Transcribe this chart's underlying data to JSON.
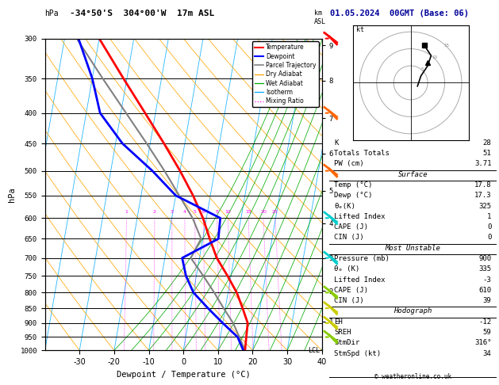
{
  "title_left": "-34°50'S  304°00'W  17m ASL",
  "title_right": "01.05.2024  00GMT (Base: 06)",
  "xlabel": "Dewpoint / Temperature (°C)",
  "pressure_ticks": [
    300,
    350,
    400,
    450,
    500,
    550,
    600,
    650,
    700,
    750,
    800,
    850,
    900,
    950,
    1000
  ],
  "temperature_profile": {
    "pressure": [
      1000,
      950,
      900,
      850,
      800,
      750,
      700,
      650,
      600,
      550,
      500,
      450,
      400,
      350,
      300
    ],
    "temp": [
      17.8,
      17.5,
      17.2,
      15.0,
      12.5,
      9.0,
      5.0,
      2.0,
      -1.0,
      -5.0,
      -10.0,
      -16.0,
      -23.0,
      -31.0,
      -40.0
    ]
  },
  "dewpoint_profile": {
    "pressure": [
      1000,
      950,
      900,
      850,
      800,
      750,
      700,
      650,
      600,
      550,
      500,
      450,
      400,
      350,
      300
    ],
    "temp": [
      17.3,
      15.0,
      10.0,
      5.0,
      0.0,
      -3.0,
      -5.0,
      4.5,
      4.0,
      -10.0,
      -18.0,
      -28.0,
      -36.0,
      -40.0,
      -46.0
    ]
  },
  "parcel_profile": {
    "pressure": [
      1000,
      950,
      900,
      850,
      800,
      750,
      700,
      650,
      600,
      550,
      500,
      450,
      400,
      350,
      300
    ],
    "temp": [
      17.8,
      15.5,
      13.0,
      9.5,
      6.0,
      2.0,
      -2.5,
      -0.5,
      -4.0,
      -9.0,
      -14.5,
      -21.0,
      -28.5,
      -37.0,
      -46.5
    ]
  },
  "km_pressures": [
    895,
    795,
    700,
    612,
    540,
    468,
    408,
    353,
    308
  ],
  "km_labels": [
    "1",
    "2",
    "3",
    "4",
    "5",
    "6",
    "7",
    "8",
    "9"
  ],
  "wind_barb_data": [
    {
      "pressure": 300,
      "color": "#ff0000"
    },
    {
      "pressure": 400,
      "color": "#ff6600"
    },
    {
      "pressure": 500,
      "color": "#ff6600"
    },
    {
      "pressure": 600,
      "color": "#00cccc"
    },
    {
      "pressure": 700,
      "color": "#00cccc"
    },
    {
      "pressure": 800,
      "color": "#88cc00"
    },
    {
      "pressure": 850,
      "color": "#cccc00"
    },
    {
      "pressure": 900,
      "color": "#cccc00"
    },
    {
      "pressure": 950,
      "color": "#88cc00"
    }
  ],
  "table_data": {
    "K": "28",
    "Totals_Totals": "51",
    "PW_cm": "3.71",
    "Surface_Temp": "17.8",
    "Surface_Dewp": "17.3",
    "Surface_ThetaE": "325",
    "Surface_LiftedIndex": "1",
    "Surface_CAPE": "0",
    "Surface_CIN": "0",
    "MU_Pressure": "900",
    "MU_ThetaE": "335",
    "MU_LiftedIndex": "-3",
    "MU_CAPE": "610",
    "MU_CIN": "39",
    "Hodo_EH": "-12",
    "Hodo_SREH": "59",
    "Hodo_StmDir": "316°",
    "Hodo_StmSpd": "34"
  },
  "hodograph_u": [
    2,
    3,
    5,
    6,
    4
  ],
  "hodograph_v": [
    -1,
    2,
    5,
    8,
    11
  ],
  "storm_u": 5,
  "storm_v": 6,
  "colors": {
    "temperature": "#ff0000",
    "dewpoint": "#0000ff",
    "parcel": "#808080",
    "isotherm": "#00aaff",
    "dry_adiabat": "#ffa500",
    "wet_adiabat": "#00aa00",
    "mixing_ratio": "#ff00ff"
  }
}
